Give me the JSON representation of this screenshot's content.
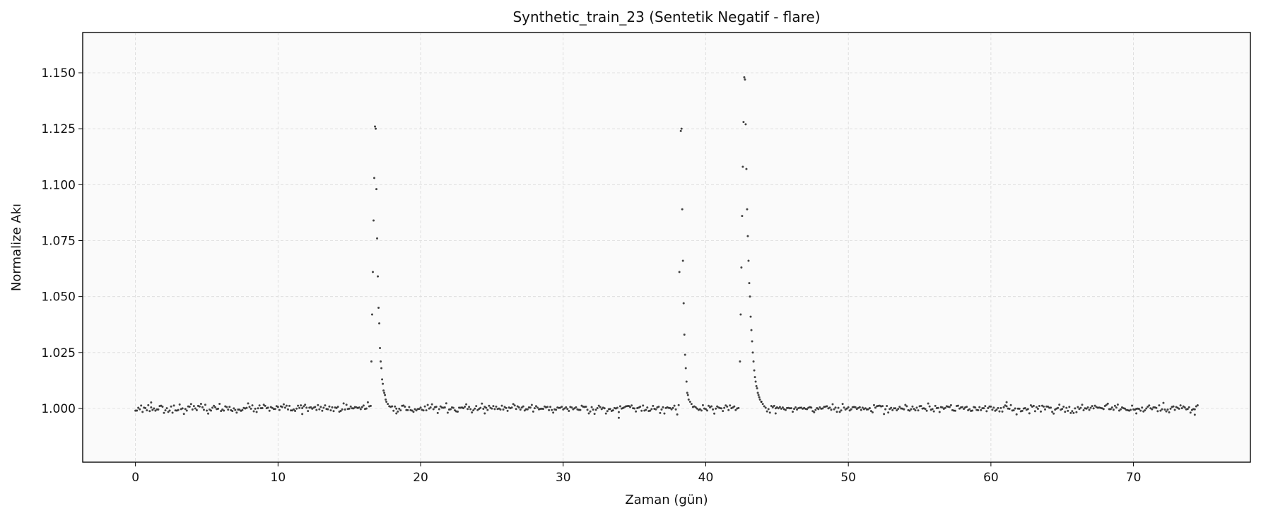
{
  "chart_data": {
    "type": "scatter",
    "title": "Synthetic_train_23 (Sentetik Negatif - flare)",
    "xlabel": "Zaman (gün)",
    "ylabel": "Normalize Akı",
    "xlim": [
      -3.7,
      78.2
    ],
    "ylim": [
      0.976,
      1.168
    ],
    "xticks": [
      0,
      10,
      20,
      30,
      40,
      50,
      60,
      70
    ],
    "yticks": [
      1.0,
      1.025,
      1.05,
      1.075,
      1.1,
      1.125,
      1.15
    ],
    "xtick_labels": [
      "0",
      "10",
      "20",
      "30",
      "40",
      "50",
      "60",
      "70"
    ],
    "ytick_labels": [
      "1.000",
      "1.025",
      "1.050",
      "1.075",
      "1.100",
      "1.125",
      "1.150"
    ],
    "grid": true,
    "marker_color": "#222222",
    "baseline": {
      "x_start": 0.0,
      "x_end": 74.5,
      "step": 0.1,
      "level": 1.0,
      "noise_sd": 0.0009
    },
    "flares": [
      {
        "points": [
          [
            16.55,
            1.021
          ],
          [
            16.6,
            1.042
          ],
          [
            16.65,
            1.061
          ],
          [
            16.7,
            1.084
          ],
          [
            16.75,
            1.103
          ],
          [
            16.8,
            1.126
          ],
          [
            16.85,
            1.125
          ],
          [
            16.9,
            1.098
          ],
          [
            16.95,
            1.076
          ],
          [
            17.0,
            1.059
          ],
          [
            17.05,
            1.045
          ],
          [
            17.1,
            1.038
          ],
          [
            17.15,
            1.027
          ],
          [
            17.2,
            1.021
          ],
          [
            17.25,
            1.018
          ],
          [
            17.3,
            1.013
          ],
          [
            17.35,
            1.011
          ],
          [
            17.4,
            1.008
          ],
          [
            17.45,
            1.007
          ],
          [
            17.5,
            1.006
          ],
          [
            17.55,
            1.004
          ],
          [
            17.6,
            1.003
          ],
          [
            17.7,
            1.002
          ],
          [
            17.8,
            1.001
          ]
        ]
      },
      {
        "points": [
          [
            38.15,
            1.061
          ],
          [
            38.25,
            1.124
          ],
          [
            38.3,
            1.125
          ],
          [
            38.35,
            1.089
          ],
          [
            38.4,
            1.066
          ],
          [
            38.45,
            1.047
          ],
          [
            38.5,
            1.033
          ],
          [
            38.55,
            1.024
          ],
          [
            38.6,
            1.018
          ],
          [
            38.65,
            1.012
          ],
          [
            38.7,
            1.007
          ],
          [
            38.75,
            1.006
          ],
          [
            38.8,
            1.004
          ],
          [
            38.9,
            1.003
          ],
          [
            39.0,
            1.002
          ]
        ]
      },
      {
        "points": [
          [
            42.4,
            1.021
          ],
          [
            42.45,
            1.042
          ],
          [
            42.5,
            1.063
          ],
          [
            42.55,
            1.086
          ],
          [
            42.6,
            1.108
          ],
          [
            42.65,
            1.128
          ],
          [
            42.7,
            1.148
          ],
          [
            42.75,
            1.147
          ],
          [
            42.8,
            1.127
          ],
          [
            42.85,
            1.107
          ],
          [
            42.9,
            1.089
          ],
          [
            42.95,
            1.077
          ],
          [
            43.0,
            1.066
          ],
          [
            43.05,
            1.056
          ],
          [
            43.1,
            1.05
          ],
          [
            43.15,
            1.041
          ],
          [
            43.2,
            1.035
          ],
          [
            43.25,
            1.03
          ],
          [
            43.3,
            1.025
          ],
          [
            43.35,
            1.021
          ],
          [
            43.4,
            1.017
          ],
          [
            43.45,
            1.014
          ],
          [
            43.5,
            1.012
          ],
          [
            43.55,
            1.01
          ],
          [
            43.6,
            1.009
          ],
          [
            43.65,
            1.007
          ],
          [
            43.7,
            1.006
          ],
          [
            43.75,
            1.005
          ],
          [
            43.8,
            1.004
          ],
          [
            43.9,
            1.003
          ],
          [
            44.0,
            1.002
          ],
          [
            44.1,
            1.001
          ]
        ]
      }
    ],
    "outliers": [
      [
        33.9,
        0.9958
      ],
      [
        11.7,
        0.9975
      ],
      [
        1.1,
        1.0027
      ],
      [
        61.1,
        1.0028
      ],
      [
        44.9,
        0.9978
      ],
      [
        74.3,
        0.9972
      ],
      [
        70.2,
        0.9978
      ],
      [
        18.3,
        0.9978
      ],
      [
        24.5,
        0.9978
      ],
      [
        43.9,
        1.003
      ]
    ]
  }
}
